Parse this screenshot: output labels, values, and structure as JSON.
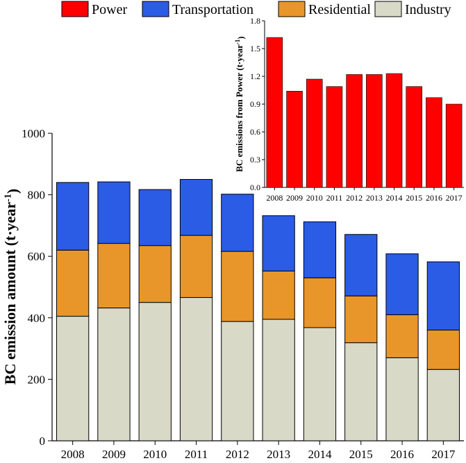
{
  "chart_data": [
    {
      "type": "bar",
      "stacked": true,
      "title": "",
      "xlabel": "",
      "ylabel": "BC emission amount (t·year",
      "ylabel_superscript": "-1",
      "ylabel_suffix": ")",
      "ylim": [
        0,
        1000
      ],
      "yticks": [
        0,
        200,
        400,
        600,
        800,
        1000
      ],
      "categories": [
        "2008",
        "2009",
        "2010",
        "2011",
        "2012",
        "2013",
        "2014",
        "2015",
        "2016",
        "2017"
      ],
      "series": [
        {
          "name": "Industry",
          "color": "#d9d9c8",
          "values": [
            405,
            432,
            450,
            466,
            388,
            395,
            368,
            319,
            270,
            232
          ]
        },
        {
          "name": "Residential",
          "color": "#e8962a",
          "values": [
            215,
            210,
            185,
            202,
            228,
            157,
            162,
            152,
            140,
            128
          ]
        },
        {
          "name": "Transportation",
          "color": "#2b5ce6",
          "values": [
            220,
            200,
            182,
            182,
            186,
            180,
            182,
            200,
            198,
            222
          ]
        }
      ],
      "legend": {
        "placement": "top",
        "items": [
          {
            "name": "Power",
            "color": "#ff0000"
          },
          {
            "name": "Transportation",
            "color": "#2b5ce6"
          },
          {
            "name": "Residential",
            "color": "#e8962a"
          },
          {
            "name": "Industry",
            "color": "#d9d9c8"
          }
        ]
      }
    },
    {
      "type": "bar",
      "title": "",
      "xlabel": "",
      "ylabel": "BC emissions from Power (t·year",
      "ylabel_superscript": "-1",
      "ylabel_suffix": ")",
      "ylim": [
        0,
        1.8
      ],
      "yticks": [
        "0.0",
        "0.3",
        "0.6",
        "0.9",
        "1.2",
        "1.5",
        "1.8"
      ],
      "categories": [
        "2008",
        "2009",
        "2010",
        "2011",
        "2012",
        "2013",
        "2014",
        "2015",
        "2016",
        "2017"
      ],
      "series": [
        {
          "name": "Power",
          "color": "#ff0000",
          "values": [
            1.62,
            1.04,
            1.17,
            1.09,
            1.22,
            1.22,
            1.23,
            1.09,
            0.97,
            0.9
          ]
        }
      ]
    }
  ]
}
